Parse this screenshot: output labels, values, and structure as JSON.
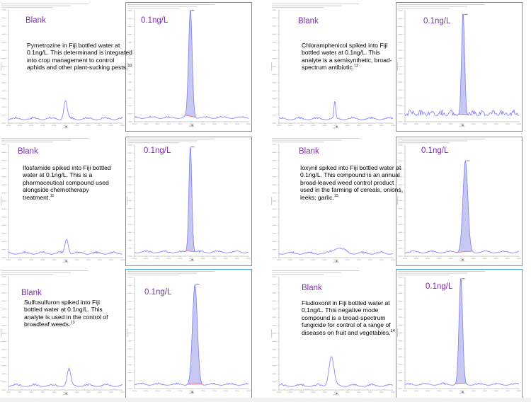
{
  "colors": {
    "trace": "#7b7bff",
    "peak_fill": "#c7c7f2",
    "baseline": "#ee5555",
    "label": "#7b2fb0",
    "frame": "#3aa8d8"
  },
  "chart_data": [
    {
      "type": "line",
      "id": "pymetrozine",
      "blank_label": "Blank",
      "spiked_label": "0.1ng/L",
      "description": "Pymetrozine in Fiji bottled water at 0.1ng/L. This determinand is integrated into crop management to control aphids and other plant-sucking pests.",
      "ref": "10",
      "blank_peak": {
        "x": 0.5,
        "h": 0.16,
        "w": 0.02
      },
      "spiked_peak": {
        "x": 0.49,
        "h": 0.98,
        "w": 0.022
      }
    },
    {
      "type": "line",
      "id": "chloramphenicol",
      "blank_label": "Blank",
      "spiked_label": "0.1ng/L",
      "description": "Chloramphenicol spiked into Fiji bottled water at 0.1ng/L. This analyte is a semisynthetic, broad-spectrum antibiotic.",
      "ref": "12",
      "blank_peak": {
        "x": 0.49,
        "h": 0.15,
        "w": 0.01
      },
      "spiked_peak": {
        "x": 0.51,
        "h": 0.9,
        "w": 0.018
      }
    },
    {
      "type": "line",
      "id": "ifosfamide",
      "blank_label": "Blank",
      "spiked_label": "0.1ng/L",
      "description": "Ifosfamide spiked into Fiji bottled water at 0.1ng/L. This is a pharmaceutical compound used alongside chemotherapy treatment.",
      "ref": "11",
      "blank_peak": {
        "x": 0.51,
        "h": 0.13,
        "w": 0.02
      },
      "spiked_peak": {
        "x": 0.49,
        "h": 0.97,
        "w": 0.018
      }
    },
    {
      "type": "line",
      "id": "ioxynil",
      "blank_label": "Blank",
      "spiked_label": "0.1ng/L",
      "description": "Ioxynil spiked into Fiji bottled water at 0.1ng/L. This compound is an annual broad-leaved weed control product used in the farming of cereals, onions, leeks; garlic.",
      "ref": "15",
      "blank_peak": {
        "x": 0.52,
        "h": 0.05,
        "w": 0.06
      },
      "spiked_peak": {
        "x": 0.53,
        "h": 0.82,
        "w": 0.03
      }
    },
    {
      "type": "line",
      "id": "sulfosulfuron",
      "blank_label": "Blank",
      "spiked_label": "0.1ng/L",
      "description": "Sulfosulfuron spiked into Fiji bottled water at 0.1ng/L. This analyte is used in the control of broadleaf weeds.",
      "ref": "13",
      "blank_peak": {
        "x": 0.53,
        "h": 0.14,
        "w": 0.022
      },
      "spiked_peak": {
        "x": 0.53,
        "h": 0.9,
        "w": 0.03
      }
    },
    {
      "type": "line",
      "id": "fludioxonil",
      "blank_label": "Blank",
      "spiked_label": "0.1ng/L",
      "description": "Fludioxonil in Fiji bottled water at 0.1ng/L. This negative mode compound is a broad-spectrum fungicide for control of a range of diseases on fruit and vegetables.",
      "ref": "14",
      "blank_peak": {
        "x": 0.46,
        "h": 0.26,
        "w": 0.03
      },
      "spiked_peak": {
        "x": 0.49,
        "h": 0.96,
        "w": 0.022
      }
    }
  ]
}
